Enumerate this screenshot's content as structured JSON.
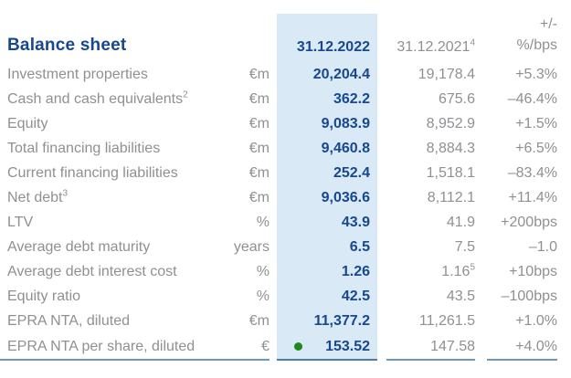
{
  "title": "Balance sheet",
  "header": {
    "col_2022": "31.12.2022",
    "col_2021": "31.12.2021",
    "col_2021_sup": "4",
    "col_change_line1": "+/-",
    "col_change_line2": "%/bps"
  },
  "rows": [
    {
      "label": "Investment properties",
      "label_sup": "",
      "unit": "€m",
      "v2022": "20,204.4",
      "v2021": "19,178.4",
      "v2021_sup": "",
      "change": "+5.3%",
      "dot": false
    },
    {
      "label": "Cash and cash equivalents",
      "label_sup": "2",
      "unit": "€m",
      "v2022": "362.2",
      "v2021": "675.6",
      "v2021_sup": "",
      "change": "–46.4%",
      "dot": false
    },
    {
      "label": "Equity",
      "label_sup": "",
      "unit": "€m",
      "v2022": "9,083.9",
      "v2021": "8,952.9",
      "v2021_sup": "",
      "change": "+1.5%",
      "dot": false
    },
    {
      "label": "Total financing liabilities",
      "label_sup": "",
      "unit": "€m",
      "v2022": "9,460.8",
      "v2021": "8,884.3",
      "v2021_sup": "",
      "change": "+6.5%",
      "dot": false
    },
    {
      "label": "Current financing liabilities",
      "label_sup": "",
      "unit": "€m",
      "v2022": "252.4",
      "v2021": "1,518.1",
      "v2021_sup": "",
      "change": "–83.4%",
      "dot": false
    },
    {
      "label": "Net debt",
      "label_sup": "3",
      "unit": "€m",
      "v2022": "9,036.6",
      "v2021": "8,112.1",
      "v2021_sup": "",
      "change": "+11.4%",
      "dot": false
    },
    {
      "label": "LTV",
      "label_sup": "",
      "unit": "%",
      "v2022": "43.9",
      "v2021": "41.9",
      "v2021_sup": "",
      "change": "+200bps",
      "dot": false
    },
    {
      "label": "Average debt maturity",
      "label_sup": "",
      "unit": "years",
      "v2022": "6.5",
      "v2021": "7.5",
      "v2021_sup": "",
      "change": "–1.0",
      "dot": false
    },
    {
      "label": "Average debt interest cost",
      "label_sup": "",
      "unit": "%",
      "v2022": "1.26",
      "v2021": "1.16",
      "v2021_sup": "5",
      "change": "+10bps",
      "dot": false
    },
    {
      "label": "Equity ratio",
      "label_sup": "",
      "unit": "%",
      "v2022": "42.5",
      "v2021": "43.5",
      "v2021_sup": "",
      "change": "–100bps",
      "dot": false
    },
    {
      "label": "EPRA NTA, diluted",
      "label_sup": "",
      "unit": "€m",
      "v2022": "11,377.2",
      "v2021": "11,261.5",
      "v2021_sup": "",
      "change": "+1.0%",
      "dot": false
    },
    {
      "label": "EPRA NTA per share, diluted",
      "label_sup": "",
      "unit": "€",
      "v2022": "153.52",
      "v2021": "147.58",
      "v2021_sup": "",
      "change": "+4.0%",
      "dot": true
    }
  ],
  "icons": {
    "green_dot": "●"
  },
  "colors": {
    "navy": "#17478e",
    "gray": "#8e9093",
    "highlight": "#d9eaf6",
    "rule": "#6d97bb",
    "rule_dark": "#4b7bab",
    "green_dot": "#1e8a1e"
  }
}
